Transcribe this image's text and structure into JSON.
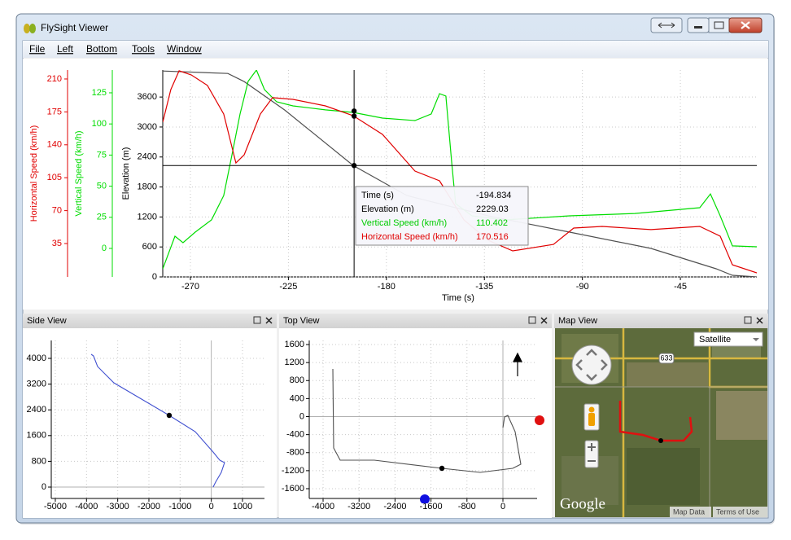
{
  "window": {
    "title": "FlySight Viewer"
  },
  "menu": [
    "File",
    "Left",
    "Bottom",
    "Tools",
    "Window"
  ],
  "main_plot": {
    "x_label": "Time (s)",
    "xlim": [
      -282.7,
      -9.9
    ],
    "xticks": [
      -270,
      -225,
      -180,
      -135,
      -90,
      -45
    ],
    "grid": true,
    "axes": [
      {
        "label": "Horizontal Speed (km/h)",
        "color": "#e00000",
        "lim": [
          -0.5,
          219.5
        ],
        "ticks": [
          35,
          70,
          105,
          140,
          175,
          210
        ]
      },
      {
        "label": "Vertical Speed (km/h)",
        "color": "#00dd00",
        "lim": [
          -22.9,
          143.3
        ],
        "ticks": [
          0,
          25,
          50,
          75,
          100,
          125
        ]
      },
      {
        "label": "Elevation (m)",
        "color": "#000000",
        "lim": [
          0,
          4140
        ],
        "ticks": [
          0,
          600,
          1200,
          1800,
          2400,
          3000,
          3600
        ]
      }
    ],
    "series": [
      {
        "axis": 2,
        "color": "#505050",
        "x": [
          -282.7,
          -252.8,
          -245.3,
          -226.7,
          -195.3,
          -170.6,
          -133.2,
          -95.9,
          -58.5,
          -28.6,
          -21.1,
          -9.9
        ],
        "values": [
          4120,
          4072,
          3909,
          3339,
          2231,
          1629,
          1221,
          896,
          570,
          163,
          33,
          0
        ]
      },
      {
        "axis": 1,
        "color": "#00dd00",
        "x": [
          -282.7,
          -277.1,
          -273.4,
          -267.8,
          -260.3,
          -254.7,
          -250.9,
          -247.2,
          -243.5,
          -239.7,
          -236.0,
          -230.4,
          -222.9,
          -208.0,
          -195.3,
          -181.8,
          -166.9,
          -159.4,
          -155.6,
          -152.7,
          -150.0,
          -148.2,
          -140.7,
          -125.8,
          -95.9,
          -65.9,
          -36.1,
          -31.2,
          -26.7,
          -21.1,
          -9.9
        ],
        "values": [
          -16.4,
          9.8,
          4.6,
          13.1,
          22.9,
          42.5,
          75.3,
          108.0,
          134.2,
          143.3,
          127.6,
          117.8,
          114.5,
          111.3,
          109.3,
          104.7,
          102.7,
          108.0,
          124.3,
          122.4,
          68.7,
          36.0,
          26.2,
          22.9,
          26.2,
          28.1,
          32.7,
          43.8,
          26.2,
          2.0,
          1.3
        ]
      },
      {
        "axis": 0,
        "color": "#e00000",
        "x": [
          -282.7,
          -279.0,
          -275.2,
          -269.6,
          -262.2,
          -254.7,
          -249.1,
          -245.3,
          -237.9,
          -232.3,
          -222.9,
          -208.0,
          -195.3,
          -181.8,
          -166.9,
          -155.6,
          -144.4,
          -133.2,
          -122.0,
          -103.3,
          -94.0,
          -80.9,
          -58.5,
          -36.1,
          -26.7,
          -21.1,
          -9.9
        ],
        "values": [
          164.1,
          198.7,
          218.7,
          214.3,
          203.1,
          172.7,
          120.7,
          129.4,
          172.7,
          190.1,
          188.3,
          181.4,
          171.0,
          151.1,
          112.1,
          101.7,
          60.1,
          38.4,
          27.2,
          34.1,
          51.5,
          53.2,
          49.8,
          53.2,
          42.8,
          12.4,
          3.8
        ]
      }
    ],
    "tooltip": [
      {
        "label": "Time (s)",
        "value": -194.834,
        "color": "#000000"
      },
      {
        "label": "Elevation (m)",
        "value": 2229.03,
        "color": "#000000",
        "axis": 2
      },
      {
        "label": "Vertical Speed (km/h)",
        "value": 110.402,
        "color": "#00cc00",
        "axis": 1
      },
      {
        "label": "Horizontal Speed (km/h)",
        "value": 170.516,
        "color": "#e00000",
        "axis": 0
      }
    ]
  },
  "side_view": {
    "title": "Side View",
    "xlim": [
      -5130,
      1705
    ],
    "ylim": [
      -354,
      4557
    ],
    "xticks": [
      -5000,
      -4000,
      -3000,
      -2000,
      -1000,
      0,
      1000
    ],
    "yticks": [
      0,
      800,
      1600,
      2400,
      3200,
      4000
    ],
    "color": "#4050d0",
    "x": [
      -3853,
      -3775,
      -3645,
      -3123,
      -1349,
      -514,
      60,
      269,
      425,
      321,
      138,
      60
    ],
    "values": [
      4127,
      4076,
      3747,
      3241,
      2228,
      1722,
      1089,
      835,
      759,
      456,
      152,
      0
    ],
    "marker": {
      "x": -1349,
      "y": 2228
    }
  },
  "top_view": {
    "title": "Top View",
    "xlim": [
      -4308,
      760
    ],
    "ylim": [
      -1817,
      1691
    ],
    "xticks": [
      -4000,
      -3200,
      -2400,
      -1600,
      -800,
      0
    ],
    "yticks": [
      -1600,
      -1200,
      -800,
      -400,
      0,
      400,
      800,
      1200,
      1600
    ],
    "color": "#505050",
    "x": [
      -3783,
      -3765,
      -3620,
      -2860,
      -1357,
      -507,
      217,
      398,
      271,
      109,
      36,
      0
    ],
    "values": [
      1058,
      -696,
      -967,
      -967,
      -1148,
      -1239,
      -1148,
      -1058,
      -335,
      27,
      -9,
      -244
    ],
    "marker": {
      "x": -1357,
      "y": -1148
    }
  },
  "map_view": {
    "title": "Map View",
    "map_type": "Satellite",
    "road_label": "633",
    "logo": "Google",
    "links": [
      "Map Data",
      "Terms of Use"
    ]
  }
}
